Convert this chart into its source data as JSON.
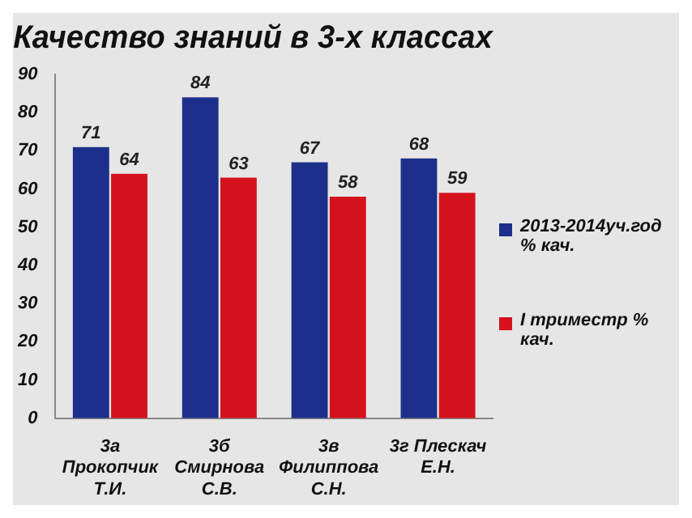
{
  "chart_data": {
    "type": "bar",
    "title": "Качество знаний в 3-х классах",
    "categories": [
      "3а Прокопчик Т.И.",
      "3б Смирнова С.В.",
      "3в Филиппова С.Н.",
      "3г Плескач Е.Н."
    ],
    "series": [
      {
        "name": "2013-2014уч.год % кач.",
        "color": "#1c2f8a",
        "values": [
          71,
          84,
          67,
          68
        ]
      },
      {
        "name": "I триместр % кач.",
        "color": "#d5121c",
        "values": [
          64,
          63,
          58,
          59
        ]
      }
    ],
    "ylim": [
      0,
      90
    ],
    "yticks": [
      0,
      10,
      20,
      30,
      40,
      50,
      60,
      70,
      80,
      90
    ],
    "grid": false,
    "legend": "right",
    "data_labels": true
  }
}
